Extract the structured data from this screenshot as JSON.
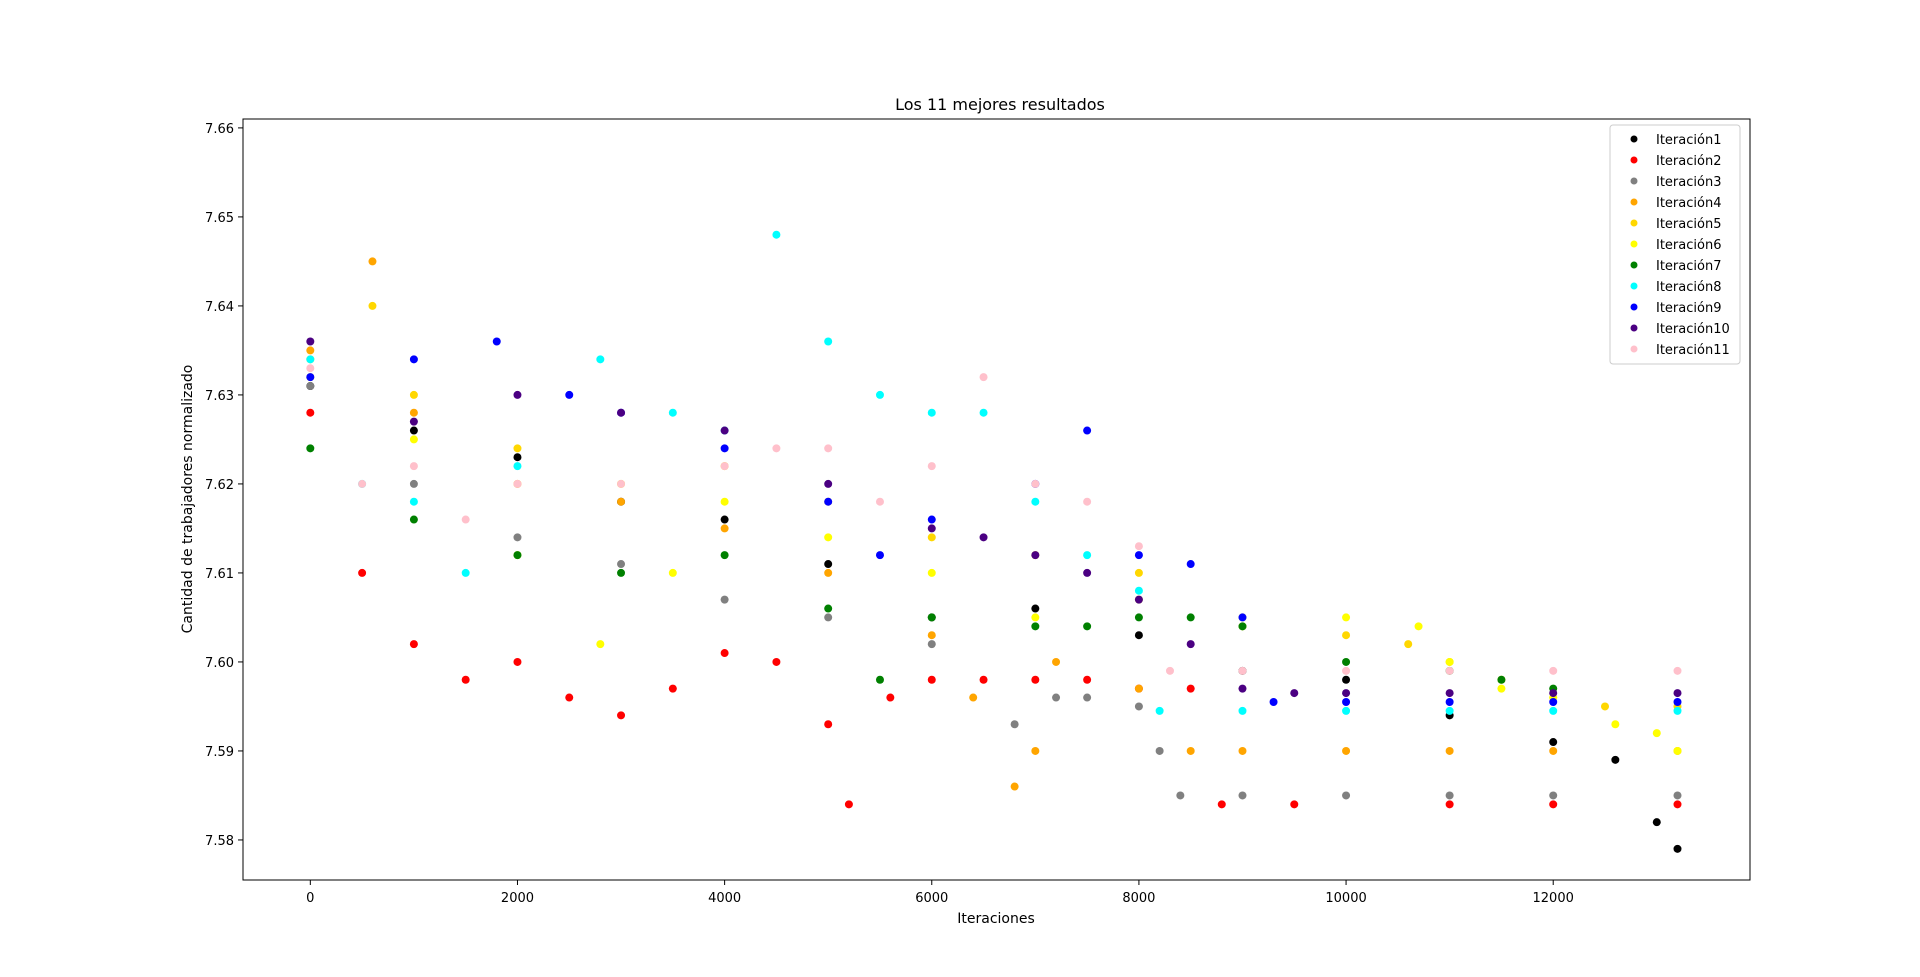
{
  "chart_data": {
    "type": "scatter",
    "title": "Los 11 mejores resultados",
    "xlabel": "Iteraciones",
    "ylabel": "Cantidad de trabajadores normalizado",
    "xlim": [
      -650,
      13900
    ],
    "ylim": [
      7.5755,
      7.661
    ],
    "xticks": [
      0,
      2000,
      4000,
      6000,
      8000,
      10000,
      12000
    ],
    "xtick_labels": [
      "0",
      "2000",
      "4000",
      "6000",
      "8000",
      "10000",
      "12000"
    ],
    "yticks": [
      7.58,
      7.59,
      7.6,
      7.61,
      7.62,
      7.63,
      7.64,
      7.65,
      7.66
    ],
    "ytick_labels": [
      "7.58",
      "7.59",
      "7.60",
      "7.61",
      "7.62",
      "7.63",
      "7.64",
      "7.65",
      "7.66"
    ],
    "grid": false,
    "legend_position": "top-right",
    "series": [
      {
        "name": "Iteración1",
        "color": "#000000",
        "x": [
          0,
          1000,
          2000,
          3000,
          4000,
          5000,
          6000,
          7000,
          8000,
          9000,
          10000,
          11000,
          12000,
          12600,
          13000,
          13200
        ],
        "y": [
          7.631,
          7.626,
          7.623,
          7.618,
          7.616,
          7.611,
          7.605,
          7.606,
          7.603,
          7.599,
          7.598,
          7.594,
          7.591,
          7.589,
          7.582,
          7.579
        ]
      },
      {
        "name": "Iteración2",
        "color": "#ff0000",
        "x": [
          0,
          500,
          1000,
          1500,
          2000,
          2500,
          3000,
          3500,
          4000,
          4500,
          5000,
          5200,
          5600,
          6000,
          6500,
          7000,
          7500,
          8000,
          8500,
          8800,
          9500,
          11000,
          12000,
          13200
        ],
        "y": [
          7.628,
          7.61,
          7.602,
          7.598,
          7.6,
          7.596,
          7.594,
          7.597,
          7.601,
          7.6,
          7.593,
          7.584,
          7.596,
          7.598,
          7.598,
          7.598,
          7.598,
          7.597,
          7.597,
          7.584,
          7.584,
          7.584,
          7.584,
          7.584
        ]
      },
      {
        "name": "Iteración3",
        "color": "#808080",
        "x": [
          0,
          1000,
          2000,
          3000,
          4000,
          5000,
          6000,
          6800,
          7200,
          7500,
          8000,
          8200,
          8400,
          9000,
          10000,
          11000,
          12000,
          13200
        ],
        "y": [
          7.631,
          7.62,
          7.614,
          7.611,
          7.607,
          7.605,
          7.602,
          7.593,
          7.596,
          7.596,
          7.595,
          7.59,
          7.585,
          7.585,
          7.585,
          7.585,
          7.585,
          7.585
        ]
      },
      {
        "name": "Iteración4",
        "color": "#ffa500",
        "x": [
          0,
          600,
          1000,
          2000,
          3000,
          4000,
          5000,
          6000,
          6400,
          6800,
          7000,
          7200,
          8000,
          8500,
          9000,
          10000,
          11000,
          12000,
          13200
        ],
        "y": [
          7.635,
          7.645,
          7.628,
          7.62,
          7.618,
          7.615,
          7.61,
          7.603,
          7.596,
          7.586,
          7.59,
          7.6,
          7.597,
          7.59,
          7.59,
          7.59,
          7.59,
          7.59,
          7.59
        ]
      },
      {
        "name": "Iteración5",
        "color": "#ffd700",
        "x": [
          0,
          600,
          1000,
          2000,
          3000,
          4000,
          5000,
          6000,
          7000,
          8000,
          9000,
          10000,
          10600,
          11000,
          11500,
          12000,
          12500,
          13200
        ],
        "y": [
          7.634,
          7.64,
          7.63,
          7.624,
          7.62,
          7.622,
          7.618,
          7.614,
          7.612,
          7.61,
          7.604,
          7.603,
          7.602,
          7.6,
          7.598,
          7.596,
          7.595,
          7.595
        ]
      },
      {
        "name": "Iteración6",
        "color": "#ffff00",
        "x": [
          0,
          1000,
          2000,
          2800,
          3500,
          4000,
          5000,
          6000,
          7000,
          8000,
          9000,
          10000,
          10700,
          11000,
          11500,
          12000,
          12600,
          13000,
          13200
        ],
        "y": [
          7.632,
          7.625,
          7.612,
          7.602,
          7.61,
          7.618,
          7.614,
          7.61,
          7.605,
          7.607,
          7.605,
          7.605,
          7.604,
          7.6,
          7.597,
          7.596,
          7.593,
          7.592,
          7.59
        ]
      },
      {
        "name": "Iteración7",
        "color": "#008000",
        "x": [
          0,
          1000,
          2000,
          3000,
          4000,
          5000,
          5500,
          6000,
          7000,
          7500,
          8000,
          8500,
          9000,
          10000,
          11000,
          11500,
          12000
        ],
        "y": [
          7.624,
          7.616,
          7.612,
          7.61,
          7.612,
          7.606,
          7.598,
          7.605,
          7.604,
          7.604,
          7.605,
          7.605,
          7.604,
          7.6,
          7.599,
          7.598,
          7.597
        ]
      },
      {
        "name": "Iteración8",
        "color": "#00ffff",
        "x": [
          0,
          500,
          1000,
          1500,
          2000,
          2800,
          3500,
          4000,
          4500,
          5000,
          5500,
          6000,
          6500,
          7000,
          7500,
          8000,
          8200,
          9000,
          10000,
          11000,
          12000,
          13200
        ],
        "y": [
          7.634,
          7.62,
          7.618,
          7.61,
          7.622,
          7.634,
          7.628,
          7.626,
          7.648,
          7.636,
          7.63,
          7.628,
          7.628,
          7.618,
          7.612,
          7.608,
          7.5945,
          7.5945,
          7.5945,
          7.5945,
          7.5945,
          7.5945
        ]
      },
      {
        "name": "Iteración9",
        "color": "#0000ff",
        "x": [
          0,
          1000,
          1800,
          2500,
          3000,
          4000,
          5000,
          5500,
          6000,
          7000,
          7500,
          8000,
          8500,
          9000,
          9300,
          10000,
          11000,
          12000,
          13200
        ],
        "y": [
          7.632,
          7.634,
          7.636,
          7.63,
          7.628,
          7.624,
          7.618,
          7.612,
          7.616,
          7.62,
          7.626,
          7.612,
          7.611,
          7.605,
          7.5955,
          7.5955,
          7.5955,
          7.5955,
          7.5955
        ]
      },
      {
        "name": "Iteración10",
        "color": "#4b0082",
        "x": [
          0,
          1000,
          2000,
          3000,
          4000,
          5000,
          6000,
          6500,
          7000,
          7500,
          8000,
          8500,
          9000,
          9500,
          10000,
          11000,
          12000,
          13200
        ],
        "y": [
          7.636,
          7.627,
          7.63,
          7.628,
          7.626,
          7.62,
          7.615,
          7.614,
          7.612,
          7.61,
          7.607,
          7.602,
          7.597,
          7.5965,
          7.5965,
          7.5965,
          7.5965,
          7.5965
        ]
      },
      {
        "name": "Iteración11",
        "color": "#ffc0cb",
        "x": [
          0,
          500,
          1000,
          1500,
          2000,
          3000,
          4000,
          4500,
          5000,
          5500,
          6000,
          6500,
          7000,
          7500,
          8000,
          8300,
          9000,
          10000,
          11000,
          12000,
          13200
        ],
        "y": [
          7.633,
          7.62,
          7.622,
          7.616,
          7.62,
          7.62,
          7.622,
          7.624,
          7.624,
          7.618,
          7.622,
          7.632,
          7.62,
          7.618,
          7.613,
          7.599,
          7.599,
          7.599,
          7.599,
          7.599,
          7.599
        ]
      }
    ]
  }
}
